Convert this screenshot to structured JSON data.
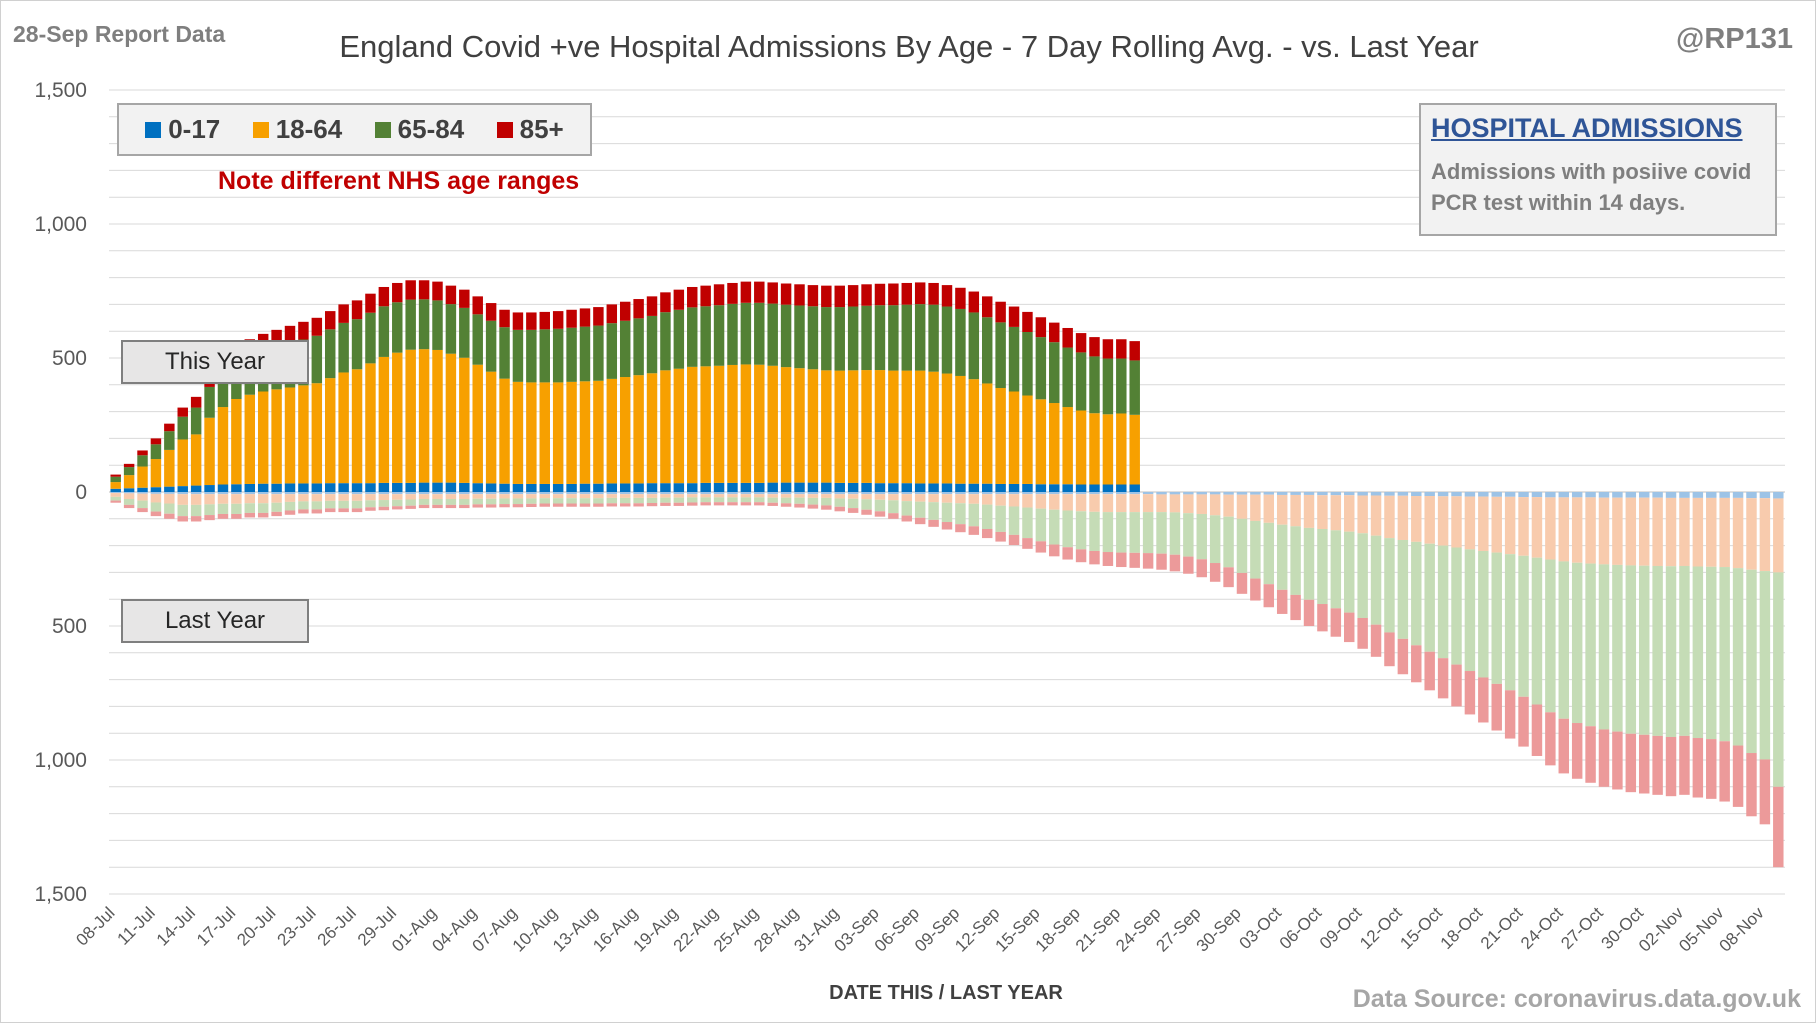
{
  "header": {
    "report_label": "28-Sep Report Data",
    "handle": "@RP131"
  },
  "note": "Note different NHS  age ranges",
  "info_box": {
    "title": "HOSPITAL ADMISSIONS",
    "text_line1": "Admissions with posiive covid",
    "text_line2": "PCR test within 14 days."
  },
  "annotations": {
    "this_year": "This Year",
    "last_year": "Last Year"
  },
  "source": "Data Source: coronavirus.data.gov.uk",
  "colors": {
    "age_0_17": "#0070c0",
    "age_18_64": "#f7a000",
    "age_65_84": "#538135",
    "age_85_plus": "#c00000",
    "age_0_17_last": "#9dc3e6",
    "age_18_64_last": "#f8cbad",
    "age_65_84_last": "#c5dcb6",
    "age_85_plus_last": "#ec9a9a",
    "gridline": "#d9d9d9",
    "axis_text": "#595959",
    "background": "#ffffff"
  },
  "chart_data": {
    "type": "bar",
    "title": "England Covid +ve Hospital Admissions By Age - 7 Day Rolling Avg. - vs. Last Year",
    "xlabel": "DATE THIS / LAST YEAR",
    "ylabel": "",
    "stacked": true,
    "ylim": [
      -1500,
      1500
    ],
    "yticks": [
      {
        "value": 1500,
        "label": "1,500"
      },
      {
        "value": 1000,
        "label": "1,000"
      },
      {
        "value": 500,
        "label": "500"
      },
      {
        "value": 0,
        "label": "0"
      },
      {
        "value": -500,
        "label": "500"
      },
      {
        "value": -1000,
        "label": "1,000"
      },
      {
        "value": -1500,
        "label": "1,500"
      }
    ],
    "legend": [
      "0-17",
      "18-64",
      "65-84",
      "85+"
    ],
    "legend_position": "top-left",
    "grid": true,
    "start_date": "08-Jul",
    "days": 125,
    "x_tick_labels": [
      "08-Jul",
      "11-Jul",
      "14-Jul",
      "17-Jul",
      "20-Jul",
      "23-Jul",
      "26-Jul",
      "29-Jul",
      "01-Aug",
      "04-Aug",
      "07-Aug",
      "10-Aug",
      "13-Aug",
      "16-Aug",
      "19-Aug",
      "22-Aug",
      "25-Aug",
      "28-Aug",
      "31-Aug",
      "03-Sep",
      "06-Sep",
      "09-Sep",
      "12-Sep",
      "15-Sep",
      "18-Sep",
      "21-Sep",
      "24-Sep",
      "27-Sep",
      "30-Sep",
      "03-Oct",
      "06-Oct",
      "09-Oct",
      "12-Oct",
      "15-Oct",
      "18-Oct",
      "21-Oct",
      "24-Oct",
      "27-Oct",
      "30-Oct",
      "02-Nov",
      "05-Nov",
      "08-Nov"
    ],
    "this_year_total": [
      65,
      105,
      155,
      200,
      255,
      315,
      355,
      440,
      500,
      545,
      570,
      590,
      605,
      620,
      635,
      650,
      675,
      700,
      715,
      740,
      765,
      780,
      790,
      790,
      785,
      770,
      755,
      730,
      705,
      680,
      670,
      670,
      672,
      675,
      680,
      685,
      690,
      700,
      710,
      720,
      730,
      745,
      755,
      765,
      770,
      775,
      780,
      785,
      785,
      782,
      778,
      775,
      772,
      770,
      770,
      772,
      775,
      777,
      778,
      780,
      782,
      780,
      772,
      762,
      748,
      730,
      710,
      692,
      672,
      652,
      632,
      612,
      593,
      578,
      570,
      570,
      563
    ],
    "this_year_85plus": [
      8,
      12,
      18,
      22,
      28,
      34,
      40,
      48,
      55,
      60,
      62,
      63,
      64,
      65,
      66,
      67,
      68,
      69,
      70,
      71,
      72,
      72,
      72,
      71,
      70,
      69,
      68,
      67,
      66,
      65,
      65,
      65,
      65,
      66,
      67,
      68,
      69,
      70,
      71,
      72,
      73,
      74,
      75,
      76,
      77,
      78,
      78,
      79,
      79,
      79,
      79,
      79,
      79,
      80,
      80,
      80,
      80,
      80,
      81,
      81,
      81,
      81,
      80,
      79,
      78,
      78,
      77,
      76,
      75,
      74,
      73,
      73,
      72,
      72,
      72,
      72,
      72
    ],
    "this_year_65_84": [
      20,
      30,
      42,
      55,
      70,
      85,
      100,
      115,
      128,
      138,
      145,
      152,
      158,
      165,
      171,
      177,
      182,
      185,
      187,
      189,
      189,
      188,
      187,
      186,
      185,
      185,
      186,
      188,
      190,
      192,
      194,
      196,
      198,
      200,
      202,
      204,
      206,
      208,
      210,
      212,
      214,
      217,
      220,
      222,
      224,
      226,
      228,
      230,
      231,
      232,
      233,
      234,
      235,
      236,
      237,
      238,
      240,
      242,
      244,
      246,
      248,
      250,
      250,
      250,
      249,
      247,
      245,
      241,
      237,
      232,
      227,
      222,
      217,
      212,
      208,
      205,
      203
    ],
    "this_year_0_17": [
      12,
      14,
      16,
      18,
      20,
      22,
      24,
      26,
      28,
      29,
      30,
      31,
      31,
      32,
      32,
      32,
      33,
      33,
      33,
      33,
      34,
      34,
      34,
      35,
      35,
      35,
      34,
      33,
      32,
      31,
      30,
      30,
      30,
      30,
      30,
      31,
      31,
      32,
      32,
      32,
      33,
      33,
      33,
      33,
      34,
      34,
      34,
      34,
      34,
      35,
      35,
      35,
      35,
      35,
      34,
      34,
      34,
      33,
      33,
      33,
      32,
      32,
      32,
      31,
      31,
      31,
      30,
      30,
      30,
      29,
      29,
      29,
      28,
      28,
      28,
      28,
      28
    ],
    "last_year_total": [
      -40,
      -60,
      -75,
      -90,
      -100,
      -110,
      -110,
      -105,
      -100,
      -100,
      -95,
      -95,
      -90,
      -85,
      -80,
      -80,
      -75,
      -75,
      -75,
      -70,
      -68,
      -65,
      -63,
      -60,
      -60,
      -60,
      -60,
      -58,
      -58,
      -57,
      -57,
      -56,
      -55,
      -55,
      -55,
      -55,
      -55,
      -54,
      -54,
      -54,
      -53,
      -52,
      -52,
      -51,
      -50,
      -50,
      -50,
      -50,
      -50,
      -52,
      -55,
      -58,
      -62,
      -66,
      -72,
      -78,
      -85,
      -92,
      -100,
      -110,
      -120,
      -130,
      -140,
      -150,
      -160,
      -172,
      -185,
      -198,
      -212,
      -226,
      -240,
      -252,
      -262,
      -270,
      -276,
      -280,
      -283,
      -286,
      -290,
      -296,
      -305,
      -318,
      -335,
      -355,
      -380,
      -405,
      -430,
      -455,
      -478,
      -500,
      -520,
      -540,
      -560,
      -585,
      -615,
      -650,
      -680,
      -710,
      -740,
      -770,
      -800,
      -830,
      -860,
      -890,
      -920,
      -950,
      -985,
      -1020,
      -1050,
      -1070,
      -1085,
      -1100,
      -1110,
      -1120,
      -1125,
      -1130,
      -1135,
      -1130,
      -1140,
      -1145,
      -1155,
      -1175,
      -1210,
      -1240,
      -1400
    ],
    "last_year_85plus": [
      -8,
      -12,
      -15,
      -17,
      -19,
      -20,
      -20,
      -19,
      -18,
      -18,
      -17,
      -17,
      -16,
      -16,
      -15,
      -15,
      -14,
      -14,
      -14,
      -13,
      -13,
      -12,
      -12,
      -12,
      -12,
      -12,
      -12,
      -12,
      -12,
      -12,
      -12,
      -12,
      -12,
      -12,
      -12,
      -12,
      -12,
      -12,
      -12,
      -12,
      -12,
      -12,
      -12,
      -12,
      -12,
      -12,
      -12,
      -12,
      -12,
      -12,
      -13,
      -14,
      -15,
      -16,
      -17,
      -18,
      -19,
      -20,
      -21,
      -22,
      -24,
      -26,
      -28,
      -30,
      -32,
      -34,
      -36,
      -38,
      -40,
      -42,
      -44,
      -46,
      -48,
      -50,
      -52,
      -54,
      -56,
      -58,
      -60,
      -62,
      -64,
      -67,
      -70,
      -74,
      -78,
      -82,
      -86,
      -90,
      -94,
      -98,
      -102,
      -106,
      -110,
      -115,
      -120,
      -126,
      -132,
      -138,
      -144,
      -150,
      -156,
      -162,
      -168,
      -174,
      -180,
      -186,
      -192,
      -198,
      -204,
      -208,
      -211,
      -214,
      -216,
      -218,
      -219,
      -220,
      -221,
      -220,
      -222,
      -223,
      -225,
      -229,
      -236,
      -242,
      -300
    ],
    "last_year_65_84": [
      -14,
      -22,
      -28,
      -34,
      -38,
      -42,
      -42,
      -40,
      -38,
      -38,
      -36,
      -36,
      -34,
      -32,
      -30,
      -30,
      -28,
      -28,
      -28,
      -26,
      -25,
      -24,
      -23,
      -22,
      -22,
      -22,
      -22,
      -21,
      -21,
      -21,
      -21,
      -20,
      -20,
      -20,
      -20,
      -20,
      -20,
      -20,
      -20,
      -20,
      -19,
      -19,
      -19,
      -19,
      -18,
      -18,
      -18,
      -18,
      -18,
      -19,
      -21,
      -23,
      -25,
      -28,
      -31,
      -35,
      -39,
      -43,
      -48,
      -54,
      -60,
      -66,
      -72,
      -78,
      -84,
      -91,
      -98,
      -106,
      -114,
      -122,
      -130,
      -137,
      -142,
      -146,
      -149,
      -151,
      -152,
      -153,
      -155,
      -158,
      -162,
      -169,
      -178,
      -189,
      -202,
      -215,
      -229,
      -243,
      -256,
      -268,
      -280,
      -291,
      -302,
      -316,
      -332,
      -352,
      -369,
      -386,
      -403,
      -420,
      -437,
      -454,
      -472,
      -490,
      -508,
      -526,
      -548,
      -570,
      -587,
      -598,
      -607,
      -616,
      -622,
      -628,
      -631,
      -634,
      -637,
      -634,
      -640,
      -643,
      -650,
      -662,
      -684,
      -703,
      -800
    ],
    "last_year_0_17": [
      -4,
      -5,
      -6,
      -7,
      -7,
      -8,
      -8,
      -8,
      -8,
      -8,
      -8,
      -8,
      -8,
      -8,
      -8,
      -8,
      -8,
      -8,
      -8,
      -8,
      -8,
      -8,
      -8,
      -8,
      -8,
      -8,
      -8,
      -8,
      -8,
      -8,
      -8,
      -8,
      -8,
      -8,
      -8,
      -8,
      -8,
      -8,
      -8,
      -8,
      -8,
      -8,
      -8,
      -8,
      -8,
      -8,
      -8,
      -8,
      -8,
      -8,
      -8,
      -8,
      -8,
      -8,
      -8,
      -8,
      -8,
      -8,
      -8,
      -8,
      -8,
      -8,
      -8,
      -8,
      -8,
      -8,
      -8,
      -8,
      -8,
      -8,
      -8,
      -8,
      -8,
      -8,
      -8,
      -8,
      -8,
      -8,
      -9,
      -9,
      -9,
      -9,
      -9,
      -10,
      -10,
      -10,
      -10,
      -11,
      -11,
      -11,
      -12,
      -12,
      -12,
      -13,
      -13,
      -14,
      -14,
      -15,
      -15,
      -16,
      -16,
      -17,
      -17,
      -18,
      -18,
      -19,
      -19,
      -20,
      -20,
      -20,
      -20,
      -21,
      -21,
      -21,
      -21,
      -21,
      -22,
      -22,
      -22,
      -22,
      -22,
      -22,
      -23,
      -23,
      -24
    ]
  }
}
